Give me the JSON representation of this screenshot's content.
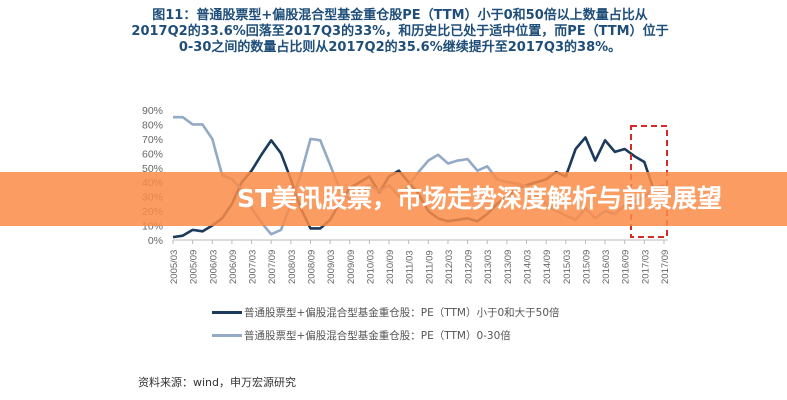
{
  "title": "图11：普通股票型+偏股混合型基金重仓股PE（TTM）小于0和50倍以上数量占比从2017Q2的33.6%回落至2017Q3的33%，和历史比已处于适中位置，而PE（TTM）位于0-30之间的数量占比则从2017Q2的35.6%继续提升至2017Q3的38%。",
  "banner": "ST美讯股票，市场走势深度解析与前景展望",
  "source": "资料来源：wind，申万宏源研究",
  "colors": {
    "dark": "#1b3a5c",
    "light": "#93aac6",
    "highlight": "#d42a2a",
    "banner": "#fa8c46"
  },
  "chart_data": {
    "type": "line",
    "title": "",
    "xlabel": "",
    "ylabel": "",
    "ylim": [
      0,
      90
    ],
    "yticks": [
      "0%",
      "10%",
      "20%",
      "30%",
      "40%",
      "50%",
      "60%",
      "70%",
      "80%",
      "90%"
    ],
    "xtick_labels": [
      "2005/03",
      "2005/09",
      "2006/03",
      "2006/09",
      "2007/03",
      "2007/09",
      "2008/03",
      "2008/09",
      "2009/03",
      "2009/09",
      "2010/03",
      "2010/09",
      "2011/03",
      "2011/09",
      "2012/03",
      "2012/09",
      "2013/03",
      "2013/09",
      "2014/03",
      "2014/09",
      "2015/03",
      "2015/09",
      "2016/03",
      "2016/09",
      "2017/03",
      "2017/09"
    ],
    "grid": false,
    "legend_position": "bottom",
    "series": [
      {
        "name": "普通股票型+偏股混合型基金重仓股：PE（TTM）小于0和大于50倍",
        "values": [
          2,
          3,
          7,
          6,
          10,
          15,
          25,
          40,
          48,
          59,
          69,
          60,
          42,
          22,
          8,
          8,
          14,
          26,
          36,
          40,
          44,
          33,
          44,
          48,
          40,
          32,
          20,
          15,
          13,
          14,
          15,
          13,
          18,
          25,
          30,
          36,
          38,
          40,
          42,
          47,
          44,
          63,
          71,
          55,
          69,
          61,
          63,
          58,
          54,
          33.6,
          33
        ]
      },
      {
        "name": "普通股票型+偏股混合型基金重仓股：PE（TTM）0-30倍",
        "values": [
          85,
          85,
          80,
          80,
          70,
          45,
          42,
          35,
          22,
          12,
          4,
          7,
          25,
          45,
          70,
          69,
          52,
          35,
          28,
          35,
          38,
          34,
          38,
          30,
          38,
          47,
          55,
          59,
          53,
          55,
          56,
          48,
          51,
          42,
          40,
          39,
          37,
          30,
          25,
          20,
          17,
          14,
          22,
          15,
          20,
          18,
          24,
          26,
          30,
          35.6,
          38
        ]
      }
    ]
  }
}
